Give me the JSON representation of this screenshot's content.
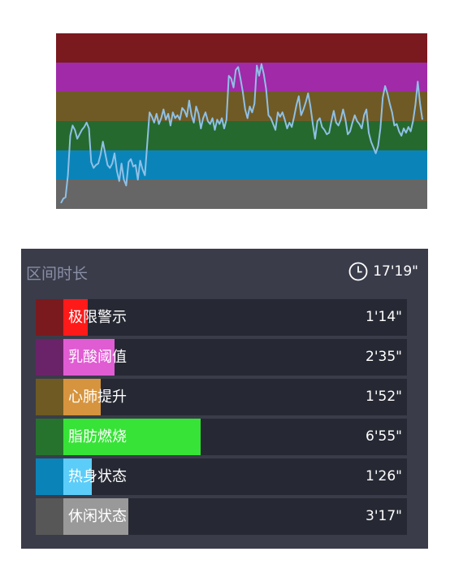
{
  "chart_data": {
    "type": "line",
    "bands": [
      {
        "zone": "极限警示",
        "color": "#7a1a1e"
      },
      {
        "zone": "乳酸阈值",
        "color": "#a02aa8"
      },
      {
        "zone": "心肺提升",
        "color": "#6f5a25"
      },
      {
        "zone": "脂肪燃烧",
        "color": "#26692e"
      },
      {
        "zone": "热身状态",
        "color": "#0a84b8"
      },
      {
        "zone": "休闲状态",
        "color": "#666666"
      }
    ],
    "line_color": "#8fc0e6",
    "ylim": [
      0,
      6
    ],
    "y": [
      0.2,
      0.35,
      0.4,
      1.15,
      2.5,
      2.85,
      2.7,
      2.4,
      2.55,
      2.7,
      2.8,
      2.95,
      2.75,
      1.6,
      1.4,
      1.5,
      1.55,
      1.85,
      2.3,
      1.9,
      1.5,
      1.4,
      1.55,
      1.9,
      1.3,
      0.95,
      1.55,
      1.0,
      0.8,
      1.6,
      1.7,
      1.45,
      1.5,
      1.0,
      1.65,
      1.35,
      1.15,
      2.2,
      3.3,
      3.15,
      2.95,
      3.25,
      2.9,
      3.1,
      3.4,
      3.05,
      3.25,
      2.85,
      3.3,
      3.1,
      3.2,
      3.05,
      3.45,
      3.35,
      3.15,
      3.7,
      3.2,
      2.95,
      3.5,
      3.25,
      2.75,
      3.1,
      3.3,
      3.0,
      2.9,
      3.1,
      2.7,
      3.05,
      2.9,
      3.1,
      2.75,
      3.05,
      4.55,
      4.45,
      4.15,
      4.75,
      4.85,
      4.45,
      4.0,
      3.4,
      3.1,
      3.5,
      3.3,
      3.6,
      4.9,
      4.55,
      4.95,
      4.6,
      4.1,
      3.2,
      3.1,
      2.9,
      2.7,
      3.3,
      3.15,
      3.3,
      3.05,
      2.75,
      2.95,
      2.8,
      3.15,
      3.55,
      3.85,
      3.2,
      3.4,
      3.65,
      3.95,
      3.5,
      2.9,
      2.4,
      3.0,
      3.1,
      2.8,
      2.7,
      2.55,
      2.6,
      3.0,
      3.35,
      2.95,
      2.85,
      3.05,
      3.4,
      3.05,
      2.55,
      2.65,
      2.95,
      3.2,
      3.0,
      2.9,
      2.75,
      3.2,
      3.4,
      2.6,
      2.3,
      2.1,
      1.9,
      2.15,
      2.75,
      3.8,
      4.2,
      3.95,
      3.6,
      3.3,
      2.85,
      2.9,
      2.65,
      2.5,
      2.75,
      2.6,
      2.8,
      2.65,
      3.0,
      3.55,
      4.35,
      3.6,
      3.05
    ]
  },
  "panel": {
    "title": "区间时长",
    "total_time": "17'19\"",
    "zones": [
      {
        "label": "极限警示",
        "time": "1'14\"",
        "fraction": 0.071,
        "swatch": "#7a1a1e",
        "fill": "#ff1a1a"
      },
      {
        "label": "乳酸阈值",
        "time": "2'35\"",
        "fraction": 0.149,
        "swatch": "#6a2368",
        "fill": "#e05cd3"
      },
      {
        "label": "心肺提升",
        "time": "1'52\"",
        "fraction": 0.108,
        "swatch": "#6e5a22",
        "fill": "#d6943e"
      },
      {
        "label": "脂肪燃烧",
        "time": "6'55\"",
        "fraction": 0.399,
        "swatch": "#26732d",
        "fill": "#36e336"
      },
      {
        "label": "热身状态",
        "time": "1'26\"",
        "fraction": 0.083,
        "swatch": "#0a84b8",
        "fill": "#5ccdf9"
      },
      {
        "label": "休闲状态",
        "time": "3'17\"",
        "fraction": 0.19,
        "swatch": "#575757",
        "fill": "#999999"
      }
    ]
  }
}
